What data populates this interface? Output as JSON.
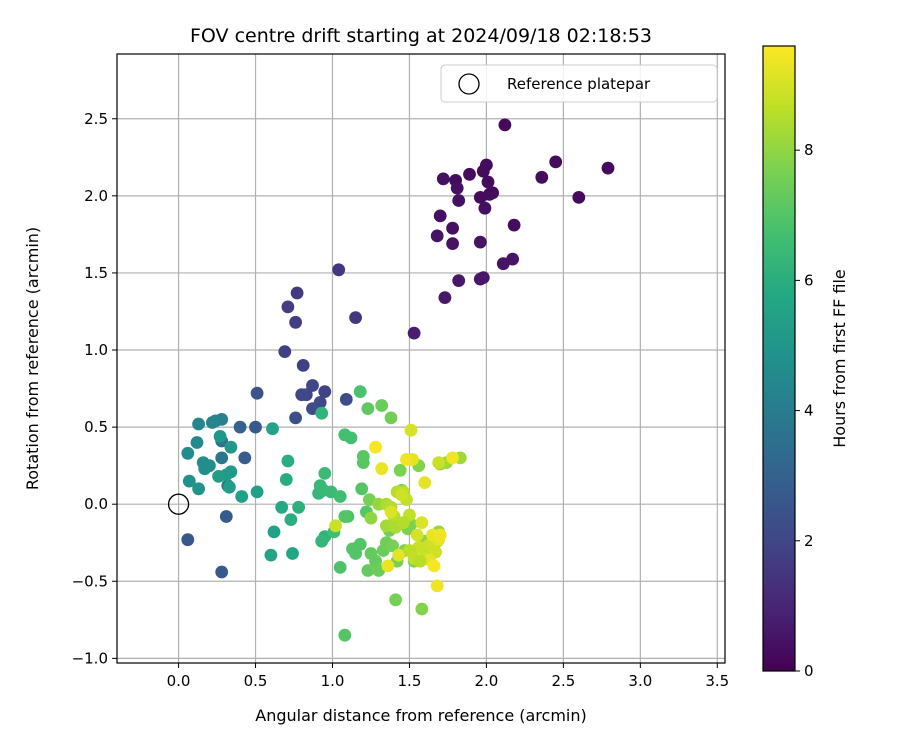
{
  "chart_data": {
    "type": "scatter",
    "title": "FOV centre drift starting at 2024/09/18 02:18:53",
    "xlabel": "Angular distance from reference (arcmin)",
    "ylabel": "Rotation from reference (arcmin)",
    "xlim": [
      -0.4,
      3.55
    ],
    "ylim": [
      -1.03,
      2.92
    ],
    "xticks": [
      0.0,
      0.5,
      1.0,
      1.5,
      2.0,
      2.5,
      3.0,
      3.5
    ],
    "xtick_labels": [
      "0.0",
      "0.5",
      "1.0",
      "1.5",
      "2.0",
      "2.5",
      "3.0",
      "3.5"
    ],
    "yticks": [
      -1.0,
      -0.5,
      0.0,
      0.5,
      1.0,
      1.5,
      2.0,
      2.5
    ],
    "ytick_labels": [
      "−1.0",
      "−0.5",
      "0.0",
      "0.5",
      "1.0",
      "1.5",
      "2.0",
      "2.5"
    ],
    "grid": true,
    "legend": {
      "placement": "top-right",
      "label": "Reference platepar"
    },
    "reference_point": {
      "x": 0.0,
      "y": 0.0
    },
    "colorbar": {
      "label": "Hours from first FF file",
      "range": [
        0,
        9.6
      ],
      "ticks": [
        0,
        2,
        4,
        6,
        8
      ],
      "colormap": "viridis"
    },
    "points": [
      [
        2.12,
        2.46,
        0.2
      ],
      [
        2.45,
        2.22,
        0.3
      ],
      [
        2.6,
        1.99,
        0.3
      ],
      [
        2.79,
        2.18,
        0.2
      ],
      [
        2.36,
        2.12,
        0.3
      ],
      [
        2.0,
        2.2,
        0.3
      ],
      [
        1.98,
        2.16,
        0.3
      ],
      [
        1.89,
        2.14,
        0.3
      ],
      [
        1.8,
        2.1,
        0.3
      ],
      [
        1.72,
        2.11,
        0.4
      ],
      [
        1.81,
        2.05,
        0.4
      ],
      [
        2.01,
        2.09,
        0.3
      ],
      [
        1.96,
        1.99,
        0.3
      ],
      [
        2.02,
        2.01,
        0.3
      ],
      [
        2.04,
        2.02,
        0.3
      ],
      [
        1.82,
        1.97,
        0.4
      ],
      [
        1.99,
        1.92,
        0.4
      ],
      [
        1.7,
        1.87,
        0.4
      ],
      [
        1.78,
        1.79,
        0.4
      ],
      [
        2.18,
        1.81,
        0.3
      ],
      [
        1.68,
        1.74,
        0.5
      ],
      [
        1.78,
        1.69,
        0.5
      ],
      [
        1.96,
        1.7,
        0.5
      ],
      [
        2.17,
        1.59,
        0.5
      ],
      [
        2.11,
        1.56,
        0.5
      ],
      [
        1.98,
        1.47,
        0.6
      ],
      [
        1.82,
        1.45,
        0.6
      ],
      [
        1.96,
        1.46,
        0.6
      ],
      [
        1.73,
        1.34,
        0.6
      ],
      [
        1.53,
        1.11,
        0.8
      ],
      [
        1.04,
        1.52,
        1.5
      ],
      [
        1.15,
        1.21,
        1.6
      ],
      [
        0.77,
        1.37,
        1.6
      ],
      [
        0.71,
        1.28,
        1.7
      ],
      [
        0.76,
        1.18,
        1.7
      ],
      [
        0.69,
        0.99,
        1.8
      ],
      [
        0.81,
        0.9,
        1.8
      ],
      [
        0.95,
        0.73,
        1.9
      ],
      [
        0.87,
        0.77,
        2.0
      ],
      [
        0.83,
        0.71,
        2.0
      ],
      [
        0.8,
        0.71,
        2.1
      ],
      [
        0.92,
        0.66,
        2.1
      ],
      [
        0.87,
        0.62,
        2.2
      ],
      [
        1.09,
        0.68,
        2.2
      ],
      [
        0.76,
        0.56,
        2.3
      ],
      [
        0.51,
        0.72,
        2.5
      ],
      [
        0.5,
        0.5,
        2.7
      ],
      [
        0.43,
        0.3,
        2.8
      ],
      [
        0.4,
        0.5,
        3.0
      ],
      [
        0.28,
        -0.44,
        2.7
      ],
      [
        0.06,
        -0.23,
        2.6
      ],
      [
        0.31,
        -0.08,
        2.7
      ],
      [
        0.28,
        0.41,
        3.6
      ],
      [
        0.32,
        0.12,
        3.7
      ],
      [
        0.28,
        0.3,
        3.8
      ],
      [
        0.24,
        0.54,
        4.3
      ],
      [
        0.28,
        0.55,
        4.1
      ],
      [
        0.22,
        0.53,
        4.4
      ],
      [
        0.13,
        0.52,
        4.4
      ],
      [
        0.12,
        0.4,
        4.5
      ],
      [
        0.06,
        0.33,
        4.6
      ],
      [
        0.16,
        0.27,
        4.6
      ],
      [
        0.2,
        0.25,
        4.7
      ],
      [
        0.17,
        0.23,
        4.7
      ],
      [
        0.07,
        0.15,
        4.8
      ],
      [
        0.13,
        0.1,
        4.9
      ],
      [
        0.27,
        0.44,
        5.0
      ],
      [
        0.34,
        0.37,
        5.1
      ],
      [
        0.34,
        0.21,
        5.2
      ],
      [
        0.31,
        0.19,
        5.2
      ],
      [
        0.33,
        0.11,
        5.3
      ],
      [
        0.26,
        0.18,
        5.3
      ],
      [
        0.41,
        0.05,
        5.4
      ],
      [
        0.51,
        0.08,
        5.4
      ],
      [
        0.61,
        0.49,
        5.5
      ],
      [
        0.62,
        -0.18,
        5.5
      ],
      [
        0.6,
        -0.33,
        5.6
      ],
      [
        0.74,
        -0.32,
        5.7
      ],
      [
        0.67,
        -0.02,
        5.8
      ],
      [
        0.7,
        0.16,
        5.9
      ],
      [
        0.71,
        0.28,
        6.0
      ],
      [
        0.73,
        -0.1,
        6.0
      ],
      [
        0.78,
        -0.02,
        6.1
      ],
      [
        0.93,
        0.59,
        6.2
      ],
      [
        0.95,
        -0.21,
        6.2
      ],
      [
        0.91,
        0.07,
        6.3
      ],
      [
        0.92,
        0.12,
        6.4
      ],
      [
        0.93,
        -0.24,
        6.3
      ],
      [
        0.94,
        0.09,
        6.4
      ],
      [
        0.95,
        0.2,
        6.5
      ],
      [
        0.99,
        0.08,
        6.5
      ],
      [
        1.01,
        -0.18,
        6.6
      ],
      [
        1.05,
        0.05,
        6.6
      ],
      [
        1.08,
        0.45,
        6.7
      ],
      [
        1.12,
        0.43,
        6.7
      ],
      [
        1.18,
        0.73,
        6.8
      ],
      [
        1.05,
        -0.41,
        6.9
      ],
      [
        1.08,
        -0.85,
        7.0
      ],
      [
        1.1,
        -0.08,
        6.9
      ],
      [
        1.13,
        -0.29,
        7.0
      ],
      [
        1.15,
        -0.32,
        7.0
      ],
      [
        1.18,
        -0.26,
        7.0
      ],
      [
        1.19,
        0.1,
        7.0
      ],
      [
        1.2,
        0.27,
        7.1
      ],
      [
        1.2,
        0.31,
        7.1
      ],
      [
        1.22,
        -0.05,
        7.1
      ],
      [
        1.23,
        0.62,
        7.2
      ],
      [
        1.23,
        -0.43,
        7.3
      ],
      [
        1.25,
        -0.32,
        7.3
      ],
      [
        1.28,
        -0.37,
        7.3
      ],
      [
        1.29,
        -0.42,
        7.4
      ],
      [
        1.3,
        -0.43,
        7.4
      ],
      [
        1.32,
        0.64,
        7.4
      ],
      [
        1.33,
        -0.3,
        7.4
      ],
      [
        1.35,
        -0.25,
        7.5
      ],
      [
        1.37,
        -0.17,
        7.5
      ],
      [
        1.38,
        0.56,
        7.5
      ],
      [
        1.39,
        -0.27,
        7.6
      ],
      [
        1.41,
        -0.62,
        7.6
      ],
      [
        1.42,
        -0.37,
        7.6
      ],
      [
        1.44,
        0.22,
        7.7
      ],
      [
        1.45,
        0.09,
        7.7
      ],
      [
        1.47,
        -0.3,
        7.7
      ],
      [
        1.49,
        -0.16,
        7.7
      ],
      [
        1.51,
        -0.13,
        7.7
      ],
      [
        1.53,
        -0.37,
        7.8
      ],
      [
        1.56,
        0.25,
        7.8
      ],
      [
        1.58,
        -0.68,
        7.8
      ],
      [
        1.6,
        -0.24,
        7.9
      ],
      [
        1.61,
        -0.32,
        7.9
      ],
      [
        1.64,
        -0.29,
        8.0
      ],
      [
        1.67,
        -0.24,
        8.0
      ],
      [
        1.68,
        -0.24,
        8.0
      ],
      [
        1.69,
        -0.18,
        8.1
      ],
      [
        1.7,
        0.26,
        8.1
      ],
      [
        1.74,
        0.27,
        8.2
      ],
      [
        1.83,
        0.3,
        8.2
      ],
      [
        1.08,
        -0.08,
        7.0
      ],
      [
        1.24,
        0.03,
        7.6
      ],
      [
        1.3,
        0.0,
        8.1
      ],
      [
        1.35,
        0.0,
        8.4
      ],
      [
        1.38,
        -0.02,
        8.5
      ],
      [
        1.4,
        -0.08,
        8.6
      ],
      [
        1.42,
        0.08,
        8.6
      ],
      [
        1.46,
        0.08,
        8.6
      ],
      [
        1.48,
        0.03,
        8.7
      ],
      [
        1.5,
        -0.07,
        8.7
      ],
      [
        1.56,
        -0.28,
        8.8
      ],
      [
        1.6,
        -0.35,
        8.8
      ],
      [
        1.62,
        -0.27,
        8.8
      ],
      [
        1.65,
        -0.25,
        8.9
      ],
      [
        1.67,
        -0.31,
        8.9
      ],
      [
        1.55,
        -0.2,
        9.0
      ],
      [
        1.58,
        -0.12,
        9.1
      ],
      [
        1.6,
        0.14,
        9.2
      ],
      [
        1.63,
        -0.36,
        9.2
      ],
      [
        1.65,
        -0.2,
        9.3
      ],
      [
        1.69,
        -0.23,
        9.3
      ],
      [
        1.7,
        -0.2,
        9.4
      ],
      [
        1.68,
        -0.53,
        9.4
      ],
      [
        1.66,
        -0.4,
        9.5
      ],
      [
        1.52,
        0.29,
        9.2
      ],
      [
        1.48,
        0.29,
        9.4
      ],
      [
        1.36,
        -0.4,
        9.3
      ],
      [
        1.32,
        0.23,
        9.3
      ],
      [
        1.28,
        0.37,
        9.5
      ],
      [
        1.51,
        0.48,
        9.0
      ],
      [
        1.45,
        0.06,
        8.9
      ],
      [
        1.38,
        -0.05,
        9.1
      ],
      [
        1.43,
        -0.33,
        9.2
      ],
      [
        1.69,
        0.27,
        8.8
      ],
      [
        1.78,
        0.3,
        9.4
      ],
      [
        1.02,
        -0.14,
        8.8
      ],
      [
        1.25,
        -0.09,
        8.0
      ],
      [
        1.35,
        -0.14,
        8.3
      ],
      [
        1.41,
        -0.15,
        8.4
      ],
      [
        1.46,
        -0.12,
        8.5
      ],
      [
        1.5,
        -0.3,
        8.6
      ],
      [
        1.53,
        -0.35,
        8.7
      ],
      [
        1.57,
        -0.37,
        8.6
      ]
    ]
  }
}
